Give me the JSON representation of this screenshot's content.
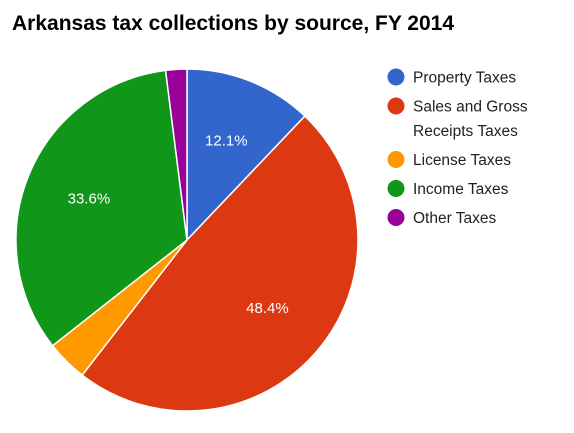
{
  "chart_data": {
    "type": "pie",
    "title": "Arkansas tax collections by source, FY 2014",
    "slices": [
      {
        "label": "Property Taxes",
        "value": 12.1,
        "color": "#3366cc",
        "data_label": "12.1%"
      },
      {
        "label": "Sales and Gross Receipts Taxes",
        "value": 48.4,
        "color": "#dc3912",
        "data_label": "48.4%"
      },
      {
        "label": "License Taxes",
        "value": 3.9,
        "color": "#ff9900",
        "data_label": ""
      },
      {
        "label": "Income Taxes",
        "value": 33.6,
        "color": "#109618",
        "data_label": "33.6%"
      },
      {
        "label": "Other Taxes",
        "value": 2.0,
        "color": "#990099",
        "data_label": ""
      }
    ],
    "legend": {
      "position": "right",
      "entries": [
        {
          "lines": [
            "Property Taxes"
          ],
          "color": "#3366cc"
        },
        {
          "lines": [
            "Sales and Gross",
            "Receipts Taxes"
          ],
          "color": "#dc3912"
        },
        {
          "lines": [
            "License Taxes"
          ],
          "color": "#ff9900"
        },
        {
          "lines": [
            "Income Taxes"
          ],
          "color": "#109618"
        },
        {
          "lines": [
            "Other Taxes"
          ],
          "color": "#990099"
        }
      ]
    }
  }
}
